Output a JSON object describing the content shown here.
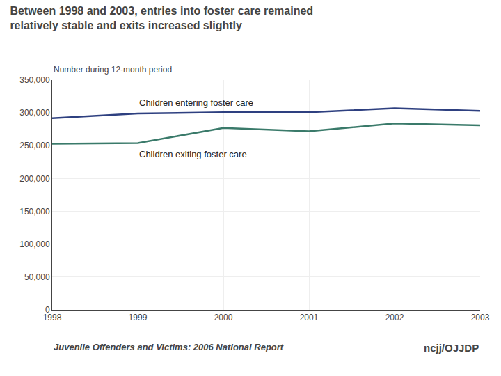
{
  "chart_data": {
    "type": "line",
    "title": "Between 1998 and 2003, entries into foster care remained relatively stable and exits increased slightly",
    "subtitle": "Number during 12-month period",
    "x": [
      1998,
      1999,
      2000,
      2001,
      2002,
      2003
    ],
    "series": [
      {
        "name": "Children entering foster care",
        "color": "#2e4080",
        "values": [
          292000,
          299000,
          301000,
          301000,
          307000,
          303000
        ]
      },
      {
        "name": "Children exiting foster care",
        "color": "#3a7a6a",
        "values": [
          253000,
          254000,
          277000,
          272000,
          284000,
          281000
        ]
      }
    ],
    "xlim": [
      1998,
      2003
    ],
    "xticks": [
      1998,
      1999,
      2000,
      2001,
      2002,
      2003
    ],
    "ylim": [
      0,
      350000
    ],
    "yticks": [
      0,
      {
        "value": 50000,
        "label": "50,000"
      },
      {
        "value": 100000,
        "label": "100,000"
      },
      {
        "value": 150000,
        "label": "150,000"
      },
      {
        "value": 200000,
        "label": "200,000"
      },
      {
        "value": 250000,
        "label": "250,000"
      },
      {
        "value": 300000,
        "label": "300,000"
      },
      {
        "value": 350000,
        "label": "350,000"
      }
    ],
    "grid": true,
    "annotations": [
      "Juvenile Offenders and Victims: 2006 National Report",
      "ncjj/OJJDP"
    ]
  }
}
